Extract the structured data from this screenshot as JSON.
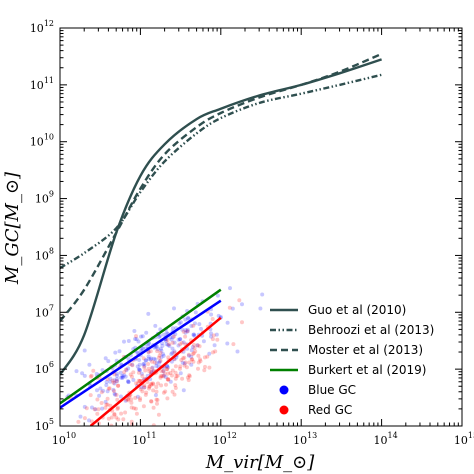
{
  "chart_data": {
    "type": "line",
    "xlabel": "M_vir[M_⊙]",
    "ylabel": "M_GC[M_⊙]",
    "x_scale": "log",
    "y_scale": "log",
    "xlim": [
      10000000000.0,
      1000000000000000.0
    ],
    "ylim": [
      100000.0,
      1000000000000.0
    ],
    "x_ticks": [
      {
        "value": 10000000000.0,
        "base": "10",
        "exp": "10"
      },
      {
        "value": 100000000000.0,
        "base": "10",
        "exp": "11"
      },
      {
        "value": 1000000000000.0,
        "base": "10",
        "exp": "12"
      },
      {
        "value": 10000000000000.0,
        "base": "10",
        "exp": "13"
      },
      {
        "value": 100000000000000.0,
        "base": "10",
        "exp": "14"
      },
      {
        "value": 1000000000000000.0,
        "base": "10",
        "exp": "15"
      }
    ],
    "y_ticks": [
      {
        "value": 100000.0,
        "base": "10",
        "exp": "5"
      },
      {
        "value": 1000000.0,
        "base": "10",
        "exp": "6"
      },
      {
        "value": 10000000.0,
        "base": "10",
        "exp": "7"
      },
      {
        "value": 100000000.0,
        "base": "10",
        "exp": "8"
      },
      {
        "value": 1000000000.0,
        "base": "10",
        "exp": "9"
      },
      {
        "value": 10000000000.0,
        "base": "10",
        "exp": "10"
      },
      {
        "value": 100000000000.0,
        "base": "10",
        "exp": "11"
      },
      {
        "value": 1000000000000.0,
        "base": "10",
        "exp": "12"
      }
    ],
    "grid": false,
    "legend_position": "lower-right",
    "series": [
      {
        "name": "Guo et al (2010)",
        "style": "solid",
        "color": "#2f4f4f",
        "x": [
          10000000000.0,
          20000000000.0,
          50000000000.0,
          100000000000.0,
          200000000000.0,
          500000000000.0,
          1000000000000.0,
          3000000000000.0,
          10000000000000.0,
          30000000000000.0,
          100000000000000.0
        ],
        "y": [
          800000.0,
          4000000.0,
          250000000.0,
          2500000000.0,
          9000000000.0,
          25000000000.0,
          38000000000.0,
          65000000000.0,
          100000000000.0,
          160000000000.0,
          280000000000.0
        ]
      },
      {
        "name": "Behroozi et al (2013)",
        "style": "dashdotdot",
        "color": "#2f4f4f",
        "x": [
          10000000000.0,
          20000000000.0,
          50000000000.0,
          100000000000.0,
          200000000000.0,
          500000000000.0,
          1000000000000.0,
          3000000000000.0,
          10000000000000.0,
          30000000000000.0,
          100000000000000.0
        ],
        "y": [
          60000000.0,
          110000000.0,
          300000000.0,
          1300000000.0,
          4500000000.0,
          14000000000.0,
          26000000000.0,
          48000000000.0,
          70000000000.0,
          100000000000.0,
          150000000000.0
        ]
      },
      {
        "name": "Moster et al (2013)",
        "style": "dashed",
        "color": "#2f4f4f",
        "x": [
          10000000000.0,
          20000000000.0,
          50000000000.0,
          100000000000.0,
          200000000000.0,
          500000000000.0,
          1000000000000.0,
          3000000000000.0,
          10000000000000.0,
          30000000000000.0,
          100000000000000.0
        ],
        "y": [
          7000000.0,
          25000000.0,
          250000000.0,
          1500000000.0,
          6000000000.0,
          18000000000.0,
          32000000000.0,
          60000000000.0,
          100000000000.0,
          170000000000.0,
          350000000000.0
        ]
      },
      {
        "name": "Burkert et al (2019)",
        "style": "solid",
        "color": "#008000",
        "x": [
          10000000000.0,
          1000000000000.0
        ],
        "y": [
          250000.0,
          25000000.0
        ]
      },
      {
        "name": "Blue GC",
        "style": "solid",
        "color": "#0000ff",
        "marker": "circle",
        "fit": {
          "x": [
            10000000000.0,
            1000000000000.0
          ],
          "y": [
            210000.0,
            16000000.0
          ]
        },
        "scatter_center": {
          "x": 150000000000.0,
          "y": 1800000.0
        }
      },
      {
        "name": "Red GC",
        "style": "solid",
        "color": "#ff0000",
        "marker": "circle",
        "fit": {
          "x": [
            24000000000.0,
            1000000000000.0
          ],
          "y": [
            100000.0,
            8000000.0
          ]
        },
        "scatter_center": {
          "x": 120000000000.0,
          "y": 600000.0
        }
      }
    ],
    "legend": [
      {
        "label": "Guo et al (2010)",
        "kind": "line",
        "style": "solid",
        "color": "#2f4f4f"
      },
      {
        "label": "Behroozi et al (2013)",
        "kind": "line",
        "style": "dashdotdot",
        "color": "#2f4f4f"
      },
      {
        "label": "Moster et al (2013)",
        "kind": "line",
        "style": "dashed",
        "color": "#2f4f4f"
      },
      {
        "label": "Burkert et al (2019)",
        "kind": "line",
        "style": "solid",
        "color": "#008000"
      },
      {
        "label": "Blue GC",
        "kind": "marker",
        "color": "#0000ff"
      },
      {
        "label": "Red GC",
        "kind": "marker",
        "color": "#ff0000"
      }
    ]
  }
}
